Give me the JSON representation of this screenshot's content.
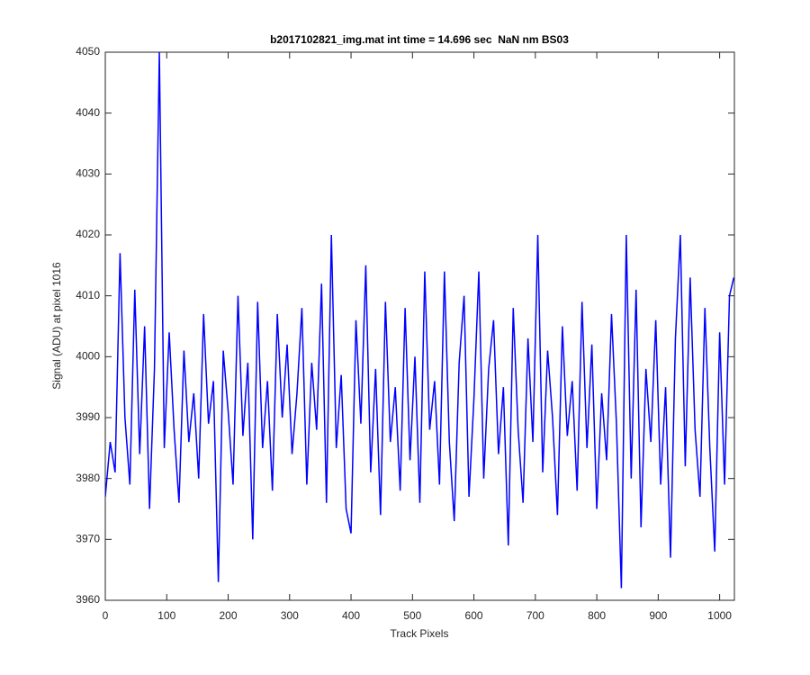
{
  "chart_data": {
    "type": "line",
    "title": "b2017102821_img.mat int time = 14.696 sec  NaN nm BS03",
    "x_label": "Track Pixels",
    "y_label": "Signal (ADU) at pixel 1016",
    "color": "#0000ff",
    "xlim": [
      0,
      1024
    ],
    "xticks": [
      0,
      100,
      200,
      300,
      400,
      500,
      600,
      700,
      800,
      900,
      1000
    ],
    "ylim": [
      3960,
      4050
    ],
    "yticks": [
      3960,
      3970,
      3980,
      3990,
      4000,
      4010,
      4020,
      4030,
      4040,
      4050
    ],
    "grid": false,
    "x": [
      0,
      8,
      16,
      24,
      32,
      40,
      48,
      56,
      64,
      72,
      80,
      88,
      96,
      104,
      112,
      120,
      128,
      136,
      144,
      152,
      160,
      168,
      176,
      184,
      192,
      200,
      208,
      216,
      224,
      232,
      240,
      248,
      256,
      264,
      272,
      280,
      288,
      296,
      304,
      312,
      320,
      328,
      336,
      344,
      352,
      360,
      368,
      376,
      384,
      392,
      400,
      408,
      416,
      424,
      432,
      440,
      448,
      456,
      464,
      472,
      480,
      488,
      496,
      504,
      512,
      520,
      528,
      536,
      544,
      552,
      560,
      568,
      576,
      584,
      592,
      600,
      608,
      616,
      624,
      632,
      640,
      648,
      656,
      664,
      672,
      680,
      688,
      696,
      704,
      712,
      720,
      728,
      736,
      744,
      752,
      760,
      768,
      776,
      784,
      792,
      800,
      808,
      816,
      824,
      832,
      840,
      848,
      856,
      864,
      872,
      880,
      888,
      896,
      904,
      912,
      920,
      928,
      936,
      944,
      952,
      960,
      968,
      976,
      984,
      992,
      1000,
      1008,
      1016,
      1023
    ],
    "values": [
      3977,
      3986,
      3981,
      4017,
      3990,
      3979,
      4011,
      3984,
      4005,
      3975,
      3998,
      4050,
      3985,
      4004,
      3988,
      3976,
      4001,
      3986,
      3994,
      3980,
      4007,
      3989,
      3996,
      3963,
      4001,
      3991,
      3979,
      4010,
      3987,
      3999,
      3970,
      4009,
      3985,
      3996,
      3978,
      4007,
      3990,
      4002,
      3984,
      3994,
      4008,
      3979,
      3999,
      3988,
      4012,
      3976,
      4020,
      3985,
      3997,
      3975,
      3971,
      4006,
      3989,
      4015,
      3981,
      3998,
      3974,
      4009,
      3986,
      3995,
      3978,
      4008,
      3983,
      4000,
      3976,
      4014,
      3988,
      3996,
      3979,
      4014,
      3986,
      3973,
      3999,
      4010,
      3977,
      3993,
      4014,
      3980,
      3998,
      4006,
      3984,
      3995,
      3969,
      4008,
      3988,
      3976,
      4003,
      3986,
      4020,
      3981,
      4001,
      3990,
      3974,
      4005,
      3987,
      3996,
      3978,
      4009,
      3985,
      4002,
      3975,
      3994,
      3983,
      4007,
      3989,
      3962,
      4020,
      3980,
      4011,
      3972,
      3998,
      3986,
      4006,
      3979,
      3995,
      3967,
      4003,
      4020,
      3982,
      4013,
      3988,
      3977,
      4008,
      3985,
      3968,
      4004,
      3979,
      4010,
      4013
    ]
  }
}
